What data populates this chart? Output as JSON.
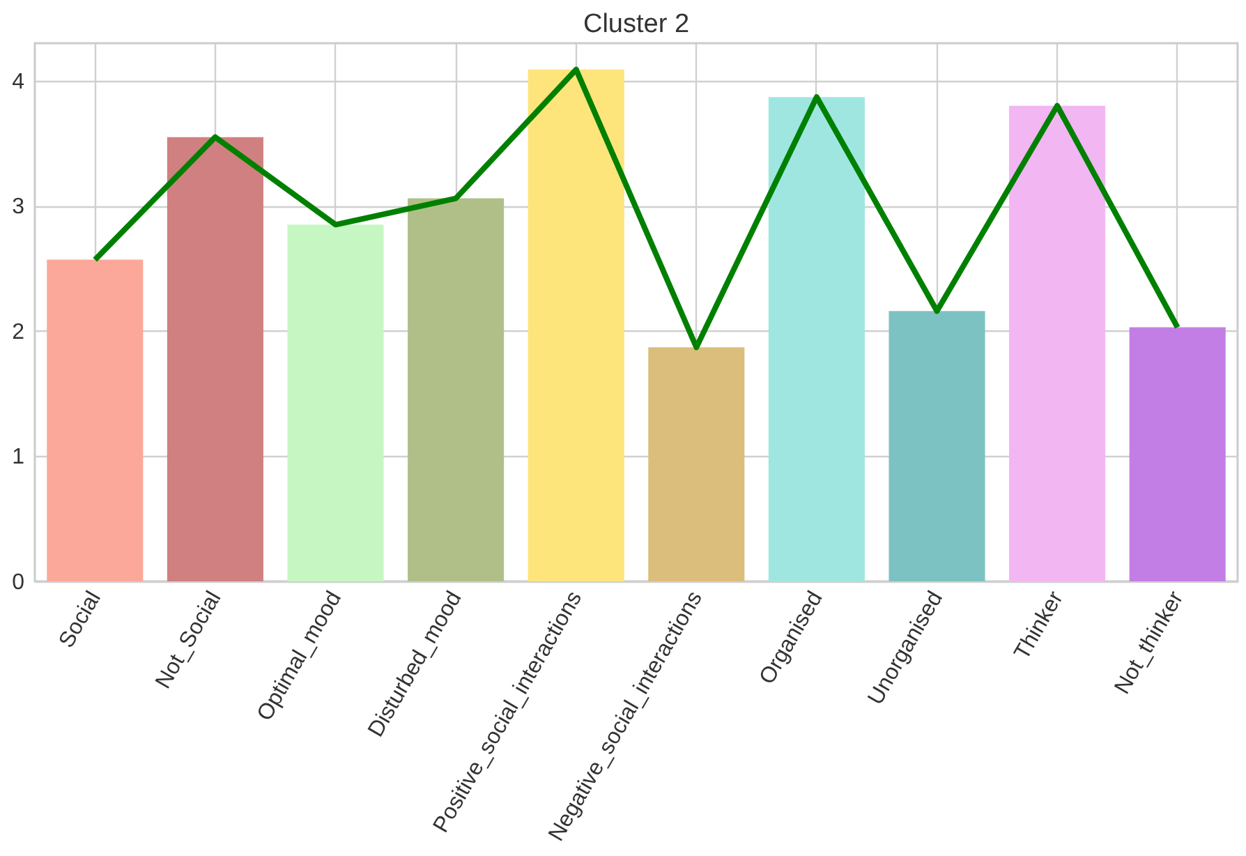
{
  "chart_data": {
    "type": "bar",
    "title": "Cluster 2",
    "categories": [
      "Social",
      "Not_Social",
      "Optimal_mood",
      "Disturbed_mood",
      "Positive_social_interactions",
      "Negative_social_interactions",
      "Organised",
      "Unorganised",
      "Thinker",
      "Not_thinker"
    ],
    "series": [
      {
        "colors": [
          "#fba89a",
          "#d08080",
          "#c6f7c3",
          "#b0bf88",
          "#fde47b",
          "#dbbd7c",
          "#9fe6e1",
          "#7cc2c2",
          "#f2b6f2",
          "#c37ee6"
        ],
        "values": [
          2.57,
          3.55,
          2.85,
          3.06,
          4.09,
          1.87,
          3.87,
          2.16,
          3.8,
          2.03
        ]
      },
      {
        "type": "line",
        "color": "#008000",
        "values": [
          2.57,
          3.55,
          2.85,
          3.06,
          4.09,
          1.87,
          3.87,
          2.16,
          3.8,
          2.03
        ]
      }
    ],
    "ylim": [
      0,
      4.3
    ],
    "yticks": [
      0,
      1,
      2,
      3,
      4
    ],
    "grid": true
  }
}
